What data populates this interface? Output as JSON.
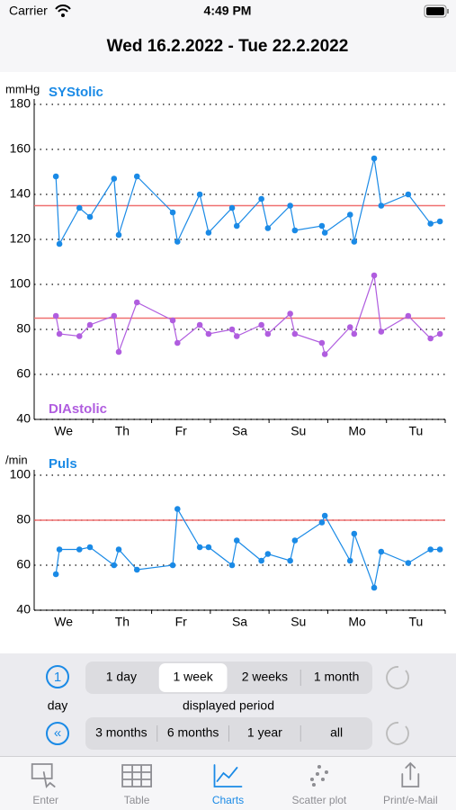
{
  "status_bar": {
    "carrier": "Carrier",
    "time": "4:49 PM"
  },
  "header": {
    "title": "Wed 16.2.2022 - Tue 22.2.2022"
  },
  "chart_data": [
    {
      "type": "line",
      "y_label": "mmHg",
      "categories": [
        "We",
        "Th",
        "Fr",
        "Sa",
        "Su",
        "Mo",
        "Tu"
      ],
      "x": [
        0.37,
        0.43,
        0.77,
        0.95,
        1.36,
        1.44,
        1.75,
        2.36,
        2.44,
        2.82,
        2.97,
        3.37,
        3.45,
        3.87,
        3.98,
        4.36,
        4.44,
        4.9,
        4.95,
        5.38,
        5.45,
        5.79,
        5.91,
        6.37,
        6.75,
        6.91
      ],
      "xlim": [
        0,
        7
      ],
      "series": [
        {
          "name": "SYStolic",
          "color": "#1a8ae6",
          "values": [
            148,
            118,
            134,
            130,
            147,
            122,
            148,
            132,
            119,
            140,
            123,
            134,
            126,
            138,
            125,
            135,
            124,
            126,
            123,
            131,
            119,
            156,
            135,
            140,
            127,
            128
          ]
        },
        {
          "name": "DIAstolic",
          "color": "#b05ddf",
          "values": [
            86,
            78,
            77,
            82,
            86,
            70,
            92,
            84,
            74,
            82,
            78,
            80,
            77,
            82,
            78,
            87,
            78,
            74,
            69,
            81,
            78,
            104,
            79,
            86,
            76,
            78
          ]
        }
      ],
      "reference_lines": [
        {
          "value": 135,
          "color": "#f07070"
        },
        {
          "value": 85,
          "color": "#f07070"
        }
      ],
      "ylim": [
        40,
        180
      ],
      "yticks": [
        40,
        60,
        80,
        100,
        120,
        140,
        160,
        180
      ],
      "grid": true
    },
    {
      "type": "line",
      "y_label": "/min",
      "categories": [
        "We",
        "Th",
        "Fr",
        "Sa",
        "Su",
        "Mo",
        "Tu"
      ],
      "x": [
        0.37,
        0.43,
        0.77,
        0.95,
        1.36,
        1.44,
        1.75,
        2.36,
        2.44,
        2.82,
        2.97,
        3.37,
        3.45,
        3.87,
        3.98,
        4.36,
        4.44,
        4.9,
        4.95,
        5.38,
        5.45,
        5.79,
        5.91,
        6.37,
        6.75,
        6.91
      ],
      "xlim": [
        0,
        7
      ],
      "series": [
        {
          "name": "Puls",
          "color": "#1a8ae6",
          "values": [
            56,
            67,
            67,
            68,
            60,
            67,
            58,
            60,
            85,
            68,
            68,
            60,
            71,
            62,
            65,
            62,
            71,
            79,
            82,
            62,
            74,
            50,
            66,
            61,
            67,
            67
          ]
        }
      ],
      "reference_lines": [
        {
          "value": 80,
          "color": "#f07070"
        }
      ],
      "ylim": [
        40,
        100
      ],
      "yticks": [
        40,
        60,
        80,
        100
      ],
      "grid": true
    }
  ],
  "controls": {
    "day_icon": "1",
    "step_label": "day",
    "back_icon": "«",
    "periods_short": [
      "1 day",
      "1 week",
      "2 weeks",
      "1 month"
    ],
    "selected": 1,
    "periods_caption": "displayed period",
    "periods_long": [
      "3 months",
      "6 months",
      "1 year",
      "all"
    ]
  },
  "tab_bar": {
    "items": [
      "Enter",
      "Table",
      "Charts",
      "Scatter plot",
      "Print/e-Mail"
    ],
    "selected": 2
  }
}
